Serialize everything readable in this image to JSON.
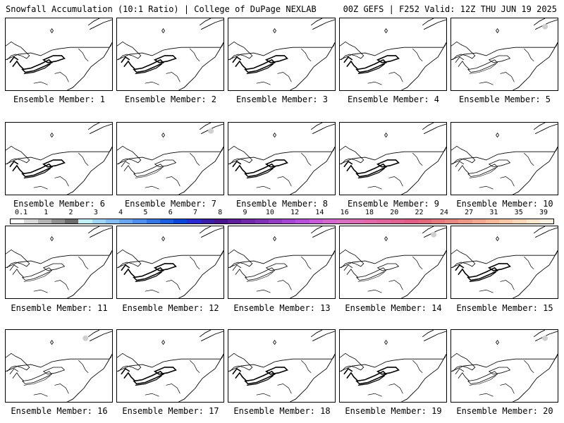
{
  "header": {
    "left": "Snowfall Accumulation (10:1 Ratio) | College of DuPage NEXLAB",
    "right": "00Z GEFS | F252 Valid: 12Z THU JUN 19 2025"
  },
  "panels": [
    {
      "label": "Ensemble Member: 1",
      "style": "dark",
      "gray_spot": false
    },
    {
      "label": "Ensemble Member: 2",
      "style": "dark",
      "gray_spot": false
    },
    {
      "label": "Ensemble Member: 3",
      "style": "dark",
      "gray_spot": false
    },
    {
      "label": "Ensemble Member: 4",
      "style": "dark",
      "gray_spot": false
    },
    {
      "label": "Ensemble Member: 5",
      "style": "light",
      "gray_spot": true
    },
    {
      "label": "Ensemble Member: 6",
      "style": "dark",
      "gray_spot": false
    },
    {
      "label": "Ensemble Member: 7",
      "style": "light",
      "gray_spot": true
    },
    {
      "label": "Ensemble Member: 8",
      "style": "dark",
      "gray_spot": false
    },
    {
      "label": "Ensemble Member: 9",
      "style": "dark",
      "gray_spot": false
    },
    {
      "label": "Ensemble Member: 10",
      "style": "light",
      "gray_spot": false
    },
    {
      "label": "Ensemble Member: 11",
      "style": "light",
      "gray_spot": false
    },
    {
      "label": "Ensemble Member: 12",
      "style": "dark",
      "gray_spot": false
    },
    {
      "label": "Ensemble Member: 13",
      "style": "light",
      "gray_spot": false
    },
    {
      "label": "Ensemble Member: 14",
      "style": "light",
      "gray_spot": true
    },
    {
      "label": "Ensemble Member: 15",
      "style": "dark",
      "gray_spot": false
    },
    {
      "label": "Ensemble Member: 16",
      "style": "light",
      "gray_spot": true
    },
    {
      "label": "Ensemble Member: 17",
      "style": "dark",
      "gray_spot": false
    },
    {
      "label": "Ensemble Member: 18",
      "style": "dark",
      "gray_spot": false
    },
    {
      "label": "Ensemble Member: 19",
      "style": "dark",
      "gray_spot": false
    },
    {
      "label": "Ensemble Member: 20",
      "style": "light",
      "gray_spot": true
    }
  ],
  "colorbar": {
    "labels": [
      "0.1",
      "1",
      "2",
      "3",
      "4",
      "5",
      "6",
      "7",
      "8",
      "9",
      "10",
      "12",
      "14",
      "16",
      "18",
      "20",
      "22",
      "24",
      "27",
      "31",
      "35",
      "39"
    ],
    "colors": [
      "#ffffff",
      "#d8d8d8",
      "#b4b4b4",
      "#909090",
      "#6c6c6c",
      "#bfeefc",
      "#9fd6f8",
      "#85bef4",
      "#6aa6f0",
      "#4f8eec",
      "#3576e6",
      "#1c5ee0",
      "#0b46d8",
      "#2a2ad0",
      "#3a1ea8",
      "#4a148c",
      "#5c1e9a",
      "#6e28a8",
      "#8032b6",
      "#923cc4",
      "#a446d2",
      "#b650d8",
      "#c85cd6",
      "#d468cc",
      "#d870c0",
      "#dc6cb4",
      "#e068a8",
      "#e0649c",
      "#e06090",
      "#e05c84",
      "#e06878",
      "#e4787c",
      "#e88884",
      "#ec9888",
      "#f0a890",
      "#f4b898",
      "#f6c8a8",
      "#f8d8b8",
      "#fae6cc",
      "#fdf2e2"
    ]
  }
}
